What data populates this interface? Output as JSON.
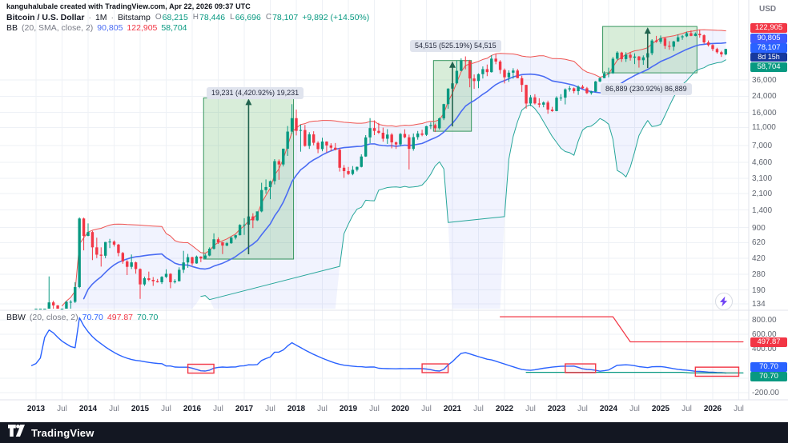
{
  "attribution": "kanguhalubale created with TradingView.com, Apr 22, 2026 09:37 UTC",
  "symbol": {
    "title": "Bitcoin / U.S. Dollar",
    "sep": "·",
    "interval": "1M",
    "exchange": "Bitstamp",
    "ohlc": {
      "o_label": "O",
      "o": "68,215",
      "h_label": "H",
      "h": "78,446",
      "l_label": "L",
      "l": "66,696",
      "c_label": "C",
      "c": "78,107",
      "change": "+9,892 (+14.50%)"
    }
  },
  "bb_legend": {
    "name": "BB",
    "params": "(20, SMA, close, 2)",
    "basis": "90,805",
    "upper": "122,905",
    "lower": "58,704"
  },
  "bbw_legend": {
    "name": "BBW",
    "params": "(20, close, 2)",
    "value": "70.70",
    "high": "497.87",
    "low": "70.70"
  },
  "price_axis": {
    "currency": "USD",
    "ticks": [
      {
        "t": "36,000",
        "v": 36000
      },
      {
        "t": "24,000",
        "v": 24000
      },
      {
        "t": "16,000",
        "v": 16000
      },
      {
        "t": "11,000",
        "v": 11000
      },
      {
        "t": "7,000",
        "v": 7000
      },
      {
        "t": "4,600",
        "v": 4600
      },
      {
        "t": "3,100",
        "v": 3100
      },
      {
        "t": "2,100",
        "v": 2100
      },
      {
        "t": "1,400",
        "v": 1400
      },
      {
        "t": "900",
        "v": 900
      },
      {
        "t": "620",
        "v": 620
      },
      {
        "t": "420",
        "v": 420
      },
      {
        "t": "280",
        "v": 280
      },
      {
        "t": "190",
        "v": 190
      },
      {
        "t": "134",
        "v": 134
      }
    ],
    "badges": {
      "upper": {
        "text": "122,905",
        "color": "#f23645"
      },
      "basis": {
        "text": "90,805",
        "color": "#3d5afe"
      },
      "last": {
        "text": "78,107",
        "color": "#2962ff"
      },
      "countdown": {
        "text": "8d 15h",
        "color": "#16399e"
      },
      "lower": {
        "text": "58,704",
        "color": "#089981"
      }
    }
  },
  "bbw_axis": {
    "ticks": [
      {
        "t": "800.00",
        "v": 800
      },
      {
        "t": "600.00",
        "v": 600
      },
      {
        "t": "400.00",
        "v": 400
      },
      {
        "t": "0.00",
        "v": 0
      },
      {
        "t": "-200.00",
        "v": -200
      }
    ],
    "badges": {
      "high": {
        "text": "497.87",
        "color": "#f23645"
      },
      "value": {
        "text": "70.70",
        "color": "#2962ff"
      },
      "low": {
        "text": "70.70",
        "color": "#089981"
      }
    }
  },
  "time_axis": {
    "labels": [
      {
        "t": "2013",
        "major": true
      },
      {
        "t": "Jul",
        "major": false
      },
      {
        "t": "2014",
        "major": true
      },
      {
        "t": "Jul",
        "major": false
      },
      {
        "t": "2015",
        "major": true
      },
      {
        "t": "Jul",
        "major": false
      },
      {
        "t": "2016",
        "major": true
      },
      {
        "t": "Jul",
        "major": false
      },
      {
        "t": "2017",
        "major": true
      },
      {
        "t": "Jul",
        "major": false
      },
      {
        "t": "2018",
        "major": true
      },
      {
        "t": "Jul",
        "major": false
      },
      {
        "t": "2019",
        "major": true
      },
      {
        "t": "Jul",
        "major": false
      },
      {
        "t": "2020",
        "major": true
      },
      {
        "t": "Jul",
        "major": false
      },
      {
        "t": "2021",
        "major": true
      },
      {
        "t": "Jul",
        "major": false
      },
      {
        "t": "2022",
        "major": true
      },
      {
        "t": "Jul",
        "major": false
      },
      {
        "t": "2023",
        "major": true
      },
      {
        "t": "Jul",
        "major": false
      },
      {
        "t": "2024",
        "major": true
      },
      {
        "t": "Jul",
        "major": false
      },
      {
        "t": "2025",
        "major": true
      },
      {
        "t": "Jul",
        "major": false
      },
      {
        "t": "2026",
        "major": true
      },
      {
        "t": "Jul",
        "major": false
      }
    ]
  },
  "footer": {
    "brand": "TradingView"
  },
  "chart_data": {
    "type": "candlestick",
    "symbol": "BTCUSD",
    "interval": "1M",
    "scale": "log",
    "start": {
      "year": 2013,
      "month": 1
    },
    "indicators": {
      "bb": {
        "length": 20,
        "ma": "SMA",
        "source": "close",
        "mult": 2
      },
      "bbw": {
        "length": 20,
        "source": "close",
        "mult": 2
      }
    },
    "colors": {
      "up": "#089981",
      "down": "#f23645",
      "grid": "#eef1f6",
      "separator": "#e0e3eb",
      "bb_upper": "#ef5350",
      "bb_basis": "#4a6cf3",
      "bb_lower": "#26a69a",
      "bb_fill": "rgba(74,108,243,0.08)",
      "bbw": "#2962ff",
      "bbw_high": "#f23645",
      "bbw_low": "#089981",
      "box_fill": "rgba(76,175,80,0.22)",
      "box_border": "#37965f",
      "arrow": "#20634e",
      "squeeze_fill": "rgba(242,54,69,0.05)",
      "squeeze_border": "#f23645"
    },
    "pre_closes": [
      8,
      9,
      15,
      11,
      8,
      5,
      3,
      3,
      5,
      5,
      5,
      5,
      5,
      7,
      9,
      11,
      12,
      11,
      13,
      13
    ],
    "candles": [
      [
        13,
        21,
        13,
        20
      ],
      [
        20,
        34,
        19,
        33
      ],
      [
        33,
        94,
        31,
        93
      ],
      [
        93,
        266,
        68,
        139
      ],
      [
        139,
        145,
        79,
        129
      ],
      [
        129,
        130,
        88,
        97
      ],
      [
        97,
        110,
        66,
        106
      ],
      [
        106,
        145,
        92,
        141
      ],
      [
        141,
        147,
        109,
        141
      ],
      [
        141,
        230,
        137,
        204
      ],
      [
        204,
        1163,
        198,
        1130
      ],
      [
        1130,
        1155,
        510,
        732
      ],
      [
        732,
        1000,
        725,
        806
      ],
      [
        806,
        830,
        400,
        550
      ],
      [
        550,
        700,
        420,
        458
      ],
      [
        458,
        550,
        340,
        446
      ],
      [
        446,
        630,
        420,
        628
      ],
      [
        628,
        680,
        540,
        635
      ],
      [
        635,
        655,
        560,
        589
      ],
      [
        589,
        600,
        440,
        478
      ],
      [
        478,
        490,
        365,
        387
      ],
      [
        387,
        400,
        275,
        338
      ],
      [
        338,
        460,
        320,
        378
      ],
      [
        378,
        385,
        285,
        320
      ],
      [
        320,
        325,
        152,
        218
      ],
      [
        218,
        265,
        210,
        254
      ],
      [
        254,
        300,
        236,
        244
      ],
      [
        244,
        262,
        210,
        236
      ],
      [
        236,
        250,
        228,
        230
      ],
      [
        230,
        268,
        220,
        263
      ],
      [
        263,
        318,
        255,
        284
      ],
      [
        284,
        288,
        198,
        230
      ],
      [
        230,
        248,
        223,
        236
      ],
      [
        236,
        334,
        235,
        314
      ],
      [
        314,
        504,
        290,
        377
      ],
      [
        377,
        467,
        330,
        430
      ],
      [
        430,
        436,
        350,
        368
      ],
      [
        368,
        448,
        365,
        437
      ],
      [
        437,
        440,
        380,
        416
      ],
      [
        416,
        470,
        410,
        448
      ],
      [
        448,
        550,
        440,
        531
      ],
      [
        531,
        780,
        520,
        673
      ],
      [
        673,
        705,
        600,
        624
      ],
      [
        624,
        630,
        465,
        575
      ],
      [
        575,
        628,
        565,
        610
      ],
      [
        610,
        720,
        600,
        700
      ],
      [
        700,
        755,
        670,
        745
      ],
      [
        745,
        980,
        740,
        963
      ],
      [
        963,
        1140,
        750,
        970
      ],
      [
        970,
        1210,
        920,
        1190
      ],
      [
        1190,
        1290,
        890,
        1080
      ],
      [
        1080,
        1350,
        1060,
        1350
      ],
      [
        1350,
        2760,
        1320,
        2300
      ],
      [
        2300,
        3000,
        2100,
        2480
      ],
      [
        2480,
        2920,
        1830,
        2875
      ],
      [
        2875,
        4980,
        2650,
        4735
      ],
      [
        4735,
        4950,
        2970,
        4360
      ],
      [
        4360,
        6480,
        4150,
        6468
      ],
      [
        6468,
        11400,
        5400,
        9916
      ],
      [
        9916,
        19666,
        9380,
        13860
      ],
      [
        13860,
        17200,
        9000,
        10100
      ],
      [
        10100,
        11790,
        6000,
        10310
      ],
      [
        10310,
        11700,
        6800,
        6928
      ],
      [
        6928,
        9760,
        6430,
        9245
      ],
      [
        9245,
        9990,
        7040,
        7494
      ],
      [
        7494,
        7780,
        5780,
        6404
      ],
      [
        6404,
        8500,
        6070,
        7729
      ],
      [
        7729,
        7770,
        5880,
        7011
      ],
      [
        7011,
        7410,
        6100,
        6625
      ],
      [
        6625,
        7450,
        6200,
        6303
      ],
      [
        6303,
        6540,
        3650,
        4017
      ],
      [
        4017,
        4300,
        3122,
        3691
      ],
      [
        3691,
        4100,
        3350,
        3437
      ],
      [
        3437,
        4190,
        3330,
        3816
      ],
      [
        3816,
        4140,
        3660,
        4105
      ],
      [
        4105,
        5620,
        4050,
        5320
      ],
      [
        5320,
        9070,
        5270,
        8574
      ],
      [
        8574,
        13880,
        7430,
        10817
      ],
      [
        10817,
        13130,
        9080,
        10085
      ],
      [
        10085,
        12320,
        9350,
        9630
      ],
      [
        9630,
        10950,
        7700,
        8293
      ],
      [
        8293,
        10540,
        7290,
        9199
      ],
      [
        9199,
        9550,
        6520,
        7569
      ],
      [
        7569,
        7750,
        6430,
        7193
      ],
      [
        7193,
        9570,
        6850,
        9350
      ],
      [
        9350,
        10500,
        8400,
        8599
      ],
      [
        8599,
        9200,
        3850,
        6438
      ],
      [
        6438,
        9460,
        6150,
        8629
      ],
      [
        8629,
        10070,
        8100,
        9454
      ],
      [
        9454,
        10380,
        8830,
        9138
      ],
      [
        9138,
        11450,
        8900,
        11351
      ],
      [
        11351,
        12480,
        10550,
        11655
      ],
      [
        11655,
        12080,
        9810,
        10779
      ],
      [
        10779,
        14100,
        10400,
        13781
      ],
      [
        13781,
        19860,
        13200,
        19696
      ],
      [
        19696,
        29300,
        17570,
        28990
      ],
      [
        28990,
        41950,
        28130,
        33114
      ],
      [
        33114,
        58350,
        32300,
        45240
      ],
      [
        45240,
        61780,
        44950,
        58789
      ],
      [
        58789,
        64863,
        46930,
        57750
      ],
      [
        57750,
        59500,
        30000,
        37332
      ],
      [
        37332,
        41330,
        28800,
        35041
      ],
      [
        35041,
        42450,
        29300,
        41626
      ],
      [
        41626,
        50500,
        37300,
        47166
      ],
      [
        47166,
        52920,
        39600,
        43791
      ],
      [
        43791,
        66930,
        43280,
        61318
      ],
      [
        61318,
        69000,
        53300,
        57005
      ],
      [
        57005,
        59040,
        42000,
        46216
      ],
      [
        46216,
        47990,
        32950,
        38483
      ],
      [
        38483,
        45820,
        34320,
        43193
      ],
      [
        43193,
        48240,
        37160,
        45538
      ],
      [
        45538,
        47450,
        37600,
        37630
      ],
      [
        37630,
        40020,
        26700,
        31792
      ],
      [
        31792,
        31980,
        17600,
        19985
      ],
      [
        19985,
        24670,
        18780,
        23336
      ],
      [
        23336,
        25210,
        19520,
        20049
      ],
      [
        20049,
        22800,
        18120,
        19422
      ],
      [
        19422,
        21080,
        18190,
        20494
      ],
      [
        20494,
        21480,
        15476,
        17168
      ],
      [
        17168,
        18390,
        16250,
        16547
      ],
      [
        16547,
        23960,
        16490,
        23125
      ],
      [
        23125,
        25250,
        21400,
        23141
      ],
      [
        23141,
        29180,
        19550,
        28465
      ],
      [
        28465,
        31050,
        26940,
        29233
      ],
      [
        29233,
        29850,
        25800,
        27210
      ],
      [
        27210,
        31400,
        24800,
        30472
      ],
      [
        30472,
        31850,
        28860,
        29230
      ],
      [
        29230,
        30230,
        25350,
        25931
      ],
      [
        25931,
        27480,
        24900,
        26962
      ],
      [
        26962,
        35150,
        26540,
        34656
      ],
      [
        34656,
        38420,
        34100,
        37712
      ],
      [
        37712,
        44700,
        37610,
        42265
      ],
      [
        42265,
        48970,
        38500,
        42580
      ],
      [
        42580,
        63930,
        41880,
        61168
      ],
      [
        61168,
        73777,
        59000,
        71333
      ],
      [
        71333,
        72800,
        56500,
        60636
      ],
      [
        60636,
        71950,
        56550,
        67540
      ],
      [
        67540,
        71990,
        58400,
        62678
      ],
      [
        62678,
        69990,
        53500,
        64619
      ],
      [
        64619,
        65600,
        49000,
        58969
      ],
      [
        58969,
        66500,
        52550,
        63329
      ],
      [
        63329,
        73600,
        58900,
        70215
      ],
      [
        70215,
        99650,
        66800,
        96449
      ],
      [
        96449,
        108268,
        91200,
        93429
      ],
      [
        93429,
        109358,
        89150,
        102405
      ],
      [
        102405,
        102550,
        78250,
        84349
      ],
      [
        84349,
        95000,
        76600,
        82549
      ],
      [
        82549,
        95750,
        74500,
        94212
      ],
      [
        94212,
        112000,
        93300,
        104598
      ],
      [
        104598,
        110530,
        98200,
        107135
      ],
      [
        107135,
        120000,
        105100,
        115758
      ],
      [
        115758,
        124500,
        107300,
        108236
      ],
      [
        108236,
        117900,
        107200,
        114056
      ],
      [
        114056,
        126200,
        103500,
        110000
      ],
      [
        110000,
        112500,
        89000,
        92000
      ],
      [
        92000,
        96500,
        83000,
        86000
      ],
      [
        86000,
        88000,
        74000,
        78000
      ],
      [
        78000,
        80500,
        69500,
        72000
      ],
      [
        72000,
        74500,
        64000,
        68215
      ],
      [
        68215,
        78446,
        66696,
        78107
      ]
    ],
    "highlight_boxes": [
      {
        "i1": 39,
        "i2": 59,
        "p_high": 23000,
        "p_low": 410,
        "arrow_i": 49,
        "label": "19,231 (4,420.92%) 19,231"
      },
      {
        "i1": 92,
        "i2": 100,
        "p_high": 58500,
        "p_low": 10000,
        "arrow_i": 96,
        "label": "54,515 (525.19%) 54,515"
      },
      {
        "i1": 131,
        "i2": 152,
        "p_high": 137000,
        "p_low": 43000,
        "arrow_i": 141,
        "label": "86,889 (230.92%) 86,889"
      }
    ],
    "bbw_high_line": [
      {
        "i": 107,
        "v": 843
      },
      {
        "i": 133,
        "v": 843
      },
      {
        "i": 137,
        "v": 497.87
      },
      {
        "i": 163,
        "v": 497.87
      }
    ],
    "bbw_low_line": [
      {
        "i": 113,
        "v": 79
      },
      {
        "i": 149,
        "v": 79
      },
      {
        "i": 151,
        "v": 70.7
      },
      {
        "i": 163,
        "v": 70.7
      }
    ],
    "squeeze_boxes": [
      {
        "i1": 35,
        "i2": 41,
        "v1": 190,
        "v2": 68
      },
      {
        "i1": 89,
        "i2": 95,
        "v1": 195,
        "v2": 75
      },
      {
        "i1": 122,
        "i2": 129,
        "v1": 195,
        "v2": 75
      },
      {
        "i1": 152,
        "i2": 162,
        "v1": 150,
        "v2": 25
      }
    ]
  }
}
